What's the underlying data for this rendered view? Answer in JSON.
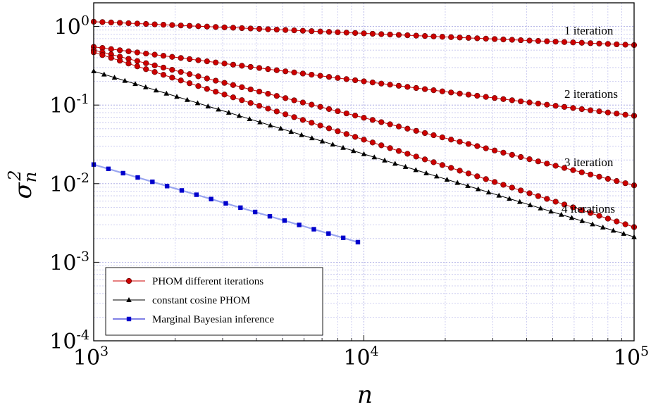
{
  "chart_data": {
    "type": "line",
    "xscale": "log",
    "yscale": "log",
    "xlim": [
      1000,
      100000
    ],
    "ylim": [
      0.0001,
      2
    ],
    "grid": true,
    "legend_position": "bottom-left",
    "xlabel": "n",
    "ylabel_base": "σ",
    "ylabel_sub": "n",
    "ylabel_sup": "2",
    "x_ticks": [
      {
        "value": 1000,
        "base": "10",
        "exp": "3"
      },
      {
        "value": 10000,
        "base": "10",
        "exp": "4"
      },
      {
        "value": 100000,
        "base": "10",
        "exp": "5"
      }
    ],
    "y_ticks": [
      {
        "value": 1,
        "base": "10",
        "exp": "0"
      },
      {
        "value": 0.1,
        "base": "10",
        "exp": "-1"
      },
      {
        "value": 0.01,
        "base": "10",
        "exp": "-2"
      },
      {
        "value": 0.001,
        "base": "10",
        "exp": "-3"
      },
      {
        "value": 0.0001,
        "base": "10",
        "exp": "-4"
      }
    ],
    "legend": [
      {
        "label": "PHOM different iterations",
        "color": "#cc0000",
        "marker": "circle"
      },
      {
        "label": "constant cosine PHOM",
        "color": "#000000",
        "marker": "triangle"
      },
      {
        "label": "Marginal Bayesian inference",
        "color": "#0000cc",
        "marker": "square"
      }
    ],
    "series": [
      {
        "group": "PHOM different iterations",
        "color": "#cc0000",
        "marker": "circle",
        "x_range": [
          1000,
          100000
        ],
        "y_start": 1.15,
        "y_end": 0.58,
        "annotation": "1 iteration"
      },
      {
        "group": "PHOM different iterations",
        "color": "#cc0000",
        "marker": "circle",
        "x_range": [
          1000,
          100000
        ],
        "y_start": 0.55,
        "y_end": 0.073,
        "annotation": "2 iterations"
      },
      {
        "group": "PHOM different iterations",
        "color": "#cc0000",
        "marker": "circle",
        "x_range": [
          1000,
          100000
        ],
        "y_start": 0.5,
        "y_end": 0.0095,
        "annotation": "3 iteration"
      },
      {
        "group": "PHOM different iterations",
        "color": "#cc0000",
        "marker": "circle",
        "x_range": [
          1000,
          100000
        ],
        "y_start": 0.47,
        "y_end": 0.0028,
        "annotation": "4 iterations"
      },
      {
        "group": "constant cosine PHOM",
        "color": "#000000",
        "marker": "triangle",
        "x_range": [
          1000,
          100000
        ],
        "y_start": 0.27,
        "y_end": 0.0021
      },
      {
        "group": "Marginal Bayesian inference",
        "color": "#0000cc",
        "line_color": "#9aa6f0",
        "marker": "square",
        "x_range": [
          1000,
          9500
        ],
        "y_start": 0.0175,
        "y_end": 0.0018
      }
    ]
  }
}
